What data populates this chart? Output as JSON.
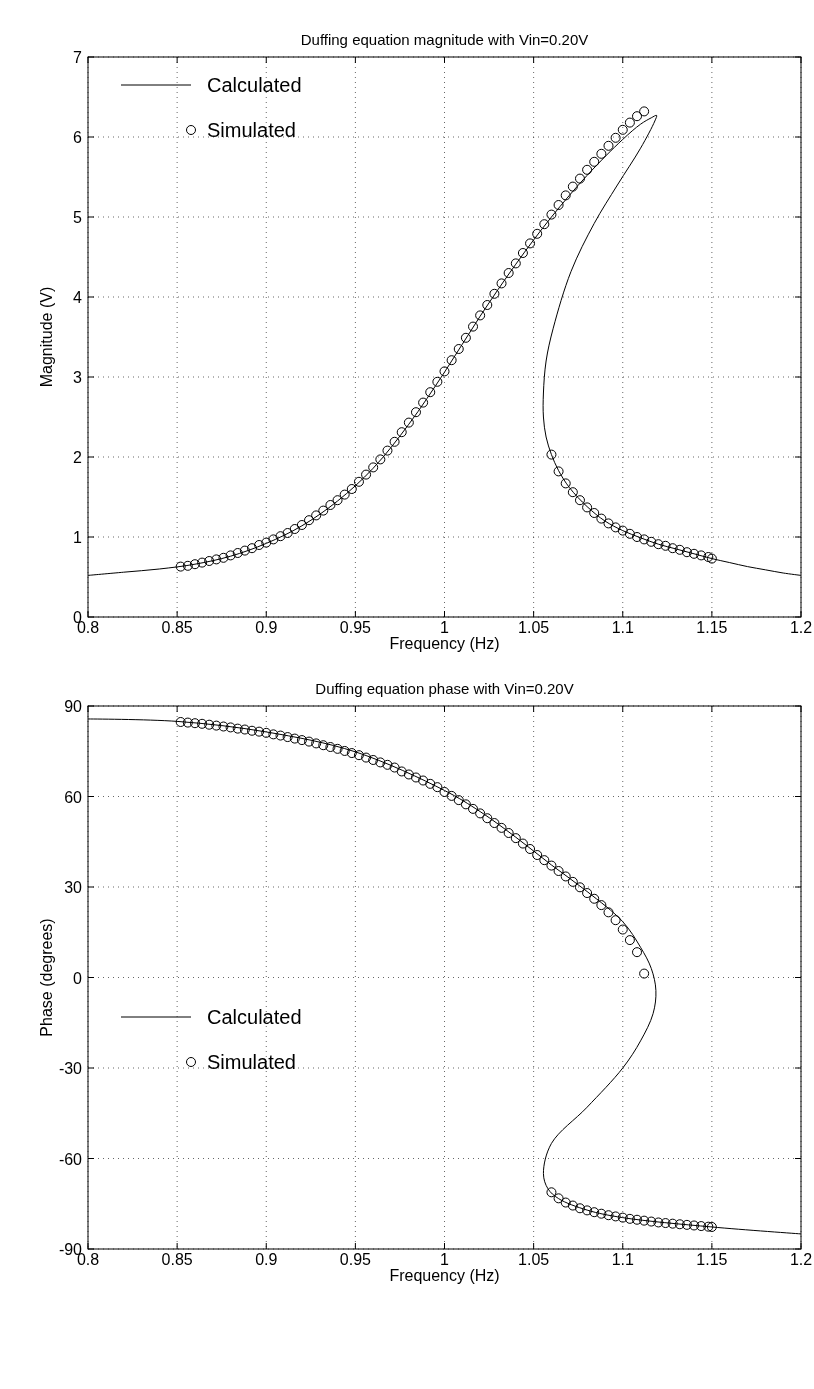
{
  "chart_data": [
    {
      "type": "line",
      "title": "Duffing equation magnitude with Vin=0.20V",
      "xlabel": "Frequency (Hz)",
      "ylabel": "Magnitude (V)",
      "xlim": [
        0.8,
        1.2
      ],
      "xticks": [
        0.8,
        0.85,
        0.9,
        0.95,
        1,
        1.05,
        1.1,
        1.15,
        1.2
      ],
      "ylim": [
        0,
        7
      ],
      "yticks": [
        0,
        1,
        2,
        3,
        4,
        5,
        6,
        7
      ],
      "grid": true,
      "legend": "top left",
      "series": [
        {
          "name": "Calculated",
          "color": "#000000",
          "line_style": "solid",
          "x": [
            0.8,
            0.82,
            0.84,
            0.86,
            0.88,
            0.9,
            0.92,
            0.94,
            0.96,
            0.98,
            1.0,
            1.02,
            1.04,
            1.06,
            1.08,
            1.1,
            1.11,
            1.116,
            1.119,
            1.118,
            1.11,
            1.097,
            1.084,
            1.071,
            1.061,
            1.057,
            1.0555,
            1.0555,
            1.057,
            1.06,
            1.064,
            1.07,
            1.08,
            1.09,
            1.1,
            1.11,
            1.12,
            1.13,
            1.14,
            1.15,
            1.16,
            1.17,
            1.18,
            1.19,
            1.2
          ],
          "values": [
            0.52,
            0.56,
            0.6,
            0.66,
            0.76,
            0.92,
            1.14,
            1.45,
            1.86,
            2.41,
            3.06,
            3.76,
            4.41,
            5.0,
            5.52,
            5.97,
            6.16,
            6.24,
            6.27,
            6.2,
            5.86,
            5.4,
            4.92,
            4.32,
            3.61,
            3.2,
            2.8,
            2.5,
            2.25,
            2.03,
            1.83,
            1.62,
            1.38,
            1.2,
            1.08,
            0.99,
            0.91,
            0.85,
            0.79,
            0.73,
            0.68,
            0.63,
            0.59,
            0.55,
            0.52
          ]
        },
        {
          "name": "Simulated",
          "type": "scatter",
          "marker": "circle",
          "color": "#000000",
          "x": [
            0.852,
            0.856,
            0.86,
            0.864,
            0.868,
            0.872,
            0.876,
            0.88,
            0.884,
            0.888,
            0.892,
            0.896,
            0.9,
            0.904,
            0.908,
            0.912,
            0.916,
            0.92,
            0.924,
            0.928,
            0.932,
            0.936,
            0.94,
            0.944,
            0.948,
            0.952,
            0.956,
            0.96,
            0.964,
            0.968,
            0.972,
            0.976,
            0.98,
            0.984,
            0.988,
            0.992,
            0.996,
            1.0,
            1.004,
            1.008,
            1.012,
            1.016,
            1.02,
            1.024,
            1.028,
            1.032,
            1.036,
            1.04,
            1.044,
            1.048,
            1.052,
            1.056,
            1.06,
            1.064,
            1.068,
            1.072,
            1.076,
            1.08,
            1.084,
            1.088,
            1.092,
            1.096,
            1.1,
            1.104,
            1.108,
            1.112,
            1.06,
            1.064,
            1.068,
            1.072,
            1.076,
            1.08,
            1.084,
            1.088,
            1.092,
            1.096,
            1.1,
            1.104,
            1.108,
            1.112,
            1.116,
            1.12,
            1.124,
            1.128,
            1.132,
            1.136,
            1.14,
            1.144,
            1.148,
            1.15
          ],
          "values": [
            0.63,
            0.64,
            0.66,
            0.68,
            0.7,
            0.72,
            0.74,
            0.77,
            0.8,
            0.83,
            0.86,
            0.9,
            0.93,
            0.97,
            1.01,
            1.05,
            1.1,
            1.15,
            1.21,
            1.27,
            1.33,
            1.4,
            1.46,
            1.53,
            1.6,
            1.69,
            1.78,
            1.87,
            1.97,
            2.08,
            2.19,
            2.31,
            2.43,
            2.56,
            2.68,
            2.81,
            2.94,
            3.07,
            3.21,
            3.35,
            3.49,
            3.63,
            3.77,
            3.9,
            4.04,
            4.17,
            4.3,
            4.42,
            4.55,
            4.67,
            4.79,
            4.91,
            5.03,
            5.15,
            5.27,
            5.38,
            5.48,
            5.59,
            5.69,
            5.79,
            5.89,
            5.99,
            6.09,
            6.18,
            6.26,
            6.32,
            2.03,
            1.82,
            1.67,
            1.56,
            1.46,
            1.37,
            1.3,
            1.23,
            1.17,
            1.12,
            1.08,
            1.04,
            1.0,
            0.97,
            0.94,
            0.91,
            0.89,
            0.86,
            0.84,
            0.81,
            0.79,
            0.77,
            0.75,
            0.73
          ]
        }
      ]
    },
    {
      "type": "line",
      "title": "Duffing equation phase with Vin=0.20V",
      "xlabel": "Frequency (Hz)",
      "ylabel": "Phase (degrees)",
      "xlim": [
        0.8,
        1.2
      ],
      "xticks": [
        0.8,
        0.85,
        0.9,
        0.95,
        1,
        1.05,
        1.1,
        1.15,
        1.2
      ],
      "ylim": [
        -90,
        90
      ],
      "yticks": [
        -90,
        -60,
        -30,
        0,
        30,
        60,
        90
      ],
      "grid": true,
      "legend": "bottom left",
      "series": [
        {
          "name": "Calculated",
          "color": "#000000",
          "line_style": "solid",
          "x": [
            0.8,
            0.85,
            0.9,
            0.95,
            1.0,
            1.02,
            1.04,
            1.06,
            1.08,
            1.1,
            1.11,
            1.116,
            1.1186,
            1.117,
            1.11,
            1.1,
            1.08,
            1.06,
            1.0555,
            1.058,
            1.064,
            1.08,
            1.1,
            1.15,
            1.2
          ],
          "values": [
            85.7,
            84.9,
            81.4,
            74.8,
            62,
            55,
            46.5,
            37.3,
            28.5,
            18.5,
            10,
            3,
            -4.3,
            -12,
            -21,
            -30,
            -43,
            -55,
            -65,
            -70,
            -73.3,
            -77.1,
            -79.6,
            -82.7,
            -85
          ]
        },
        {
          "name": "Simulated",
          "type": "scatter",
          "marker": "circle",
          "color": "#000000",
          "x": [
            0.852,
            0.856,
            0.86,
            0.864,
            0.868,
            0.872,
            0.876,
            0.88,
            0.884,
            0.888,
            0.892,
            0.896,
            0.9,
            0.904,
            0.908,
            0.912,
            0.916,
            0.92,
            0.924,
            0.928,
            0.932,
            0.936,
            0.94,
            0.944,
            0.948,
            0.952,
            0.956,
            0.96,
            0.964,
            0.968,
            0.972,
            0.976,
            0.98,
            0.984,
            0.988,
            0.992,
            0.996,
            1.0,
            1.004,
            1.008,
            1.012,
            1.016,
            1.02,
            1.024,
            1.028,
            1.032,
            1.036,
            1.04,
            1.044,
            1.048,
            1.052,
            1.056,
            1.06,
            1.064,
            1.068,
            1.072,
            1.076,
            1.08,
            1.084,
            1.088,
            1.092,
            1.096,
            1.1,
            1.104,
            1.108,
            1.112,
            1.06,
            1.064,
            1.068,
            1.072,
            1.076,
            1.08,
            1.084,
            1.088,
            1.092,
            1.096,
            1.1,
            1.104,
            1.108,
            1.112,
            1.116,
            1.12,
            1.124,
            1.128,
            1.132,
            1.136,
            1.14,
            1.144,
            1.148,
            1.15
          ],
          "values": [
            84.7,
            84.5,
            84.3,
            84.1,
            83.8,
            83.5,
            83.2,
            82.9,
            82.5,
            82.2,
            81.8,
            81.5,
            81.1,
            80.6,
            80.2,
            79.7,
            79.2,
            78.7,
            78.2,
            77.6,
            77.0,
            76.4,
            75.8,
            75.1,
            74.4,
            73.7,
            72.9,
            72.1,
            71.3,
            70.5,
            69.6,
            68.3,
            67.3,
            66.3,
            65.3,
            64.2,
            63.1,
            61.5,
            60.2,
            58.8,
            57.4,
            55.9,
            54.4,
            52.8,
            51.2,
            49.6,
            47.9,
            46.2,
            44.4,
            42.6,
            40.6,
            38.9,
            37.1,
            35.3,
            33.5,
            31.7,
            29.9,
            28.0,
            26.1,
            24.0,
            21.6,
            19.0,
            15.9,
            12.4,
            8.4,
            1.3,
            -71.2,
            -73.2,
            -74.6,
            -75.6,
            -76.5,
            -77.2,
            -77.8,
            -78.3,
            -78.8,
            -79.2,
            -79.6,
            -80.0,
            -80.3,
            -80.6,
            -80.9,
            -81.2,
            -81.4,
            -81.6,
            -81.8,
            -82.0,
            -82.2,
            -82.4,
            -82.6,
            -82.7
          ]
        }
      ]
    }
  ]
}
